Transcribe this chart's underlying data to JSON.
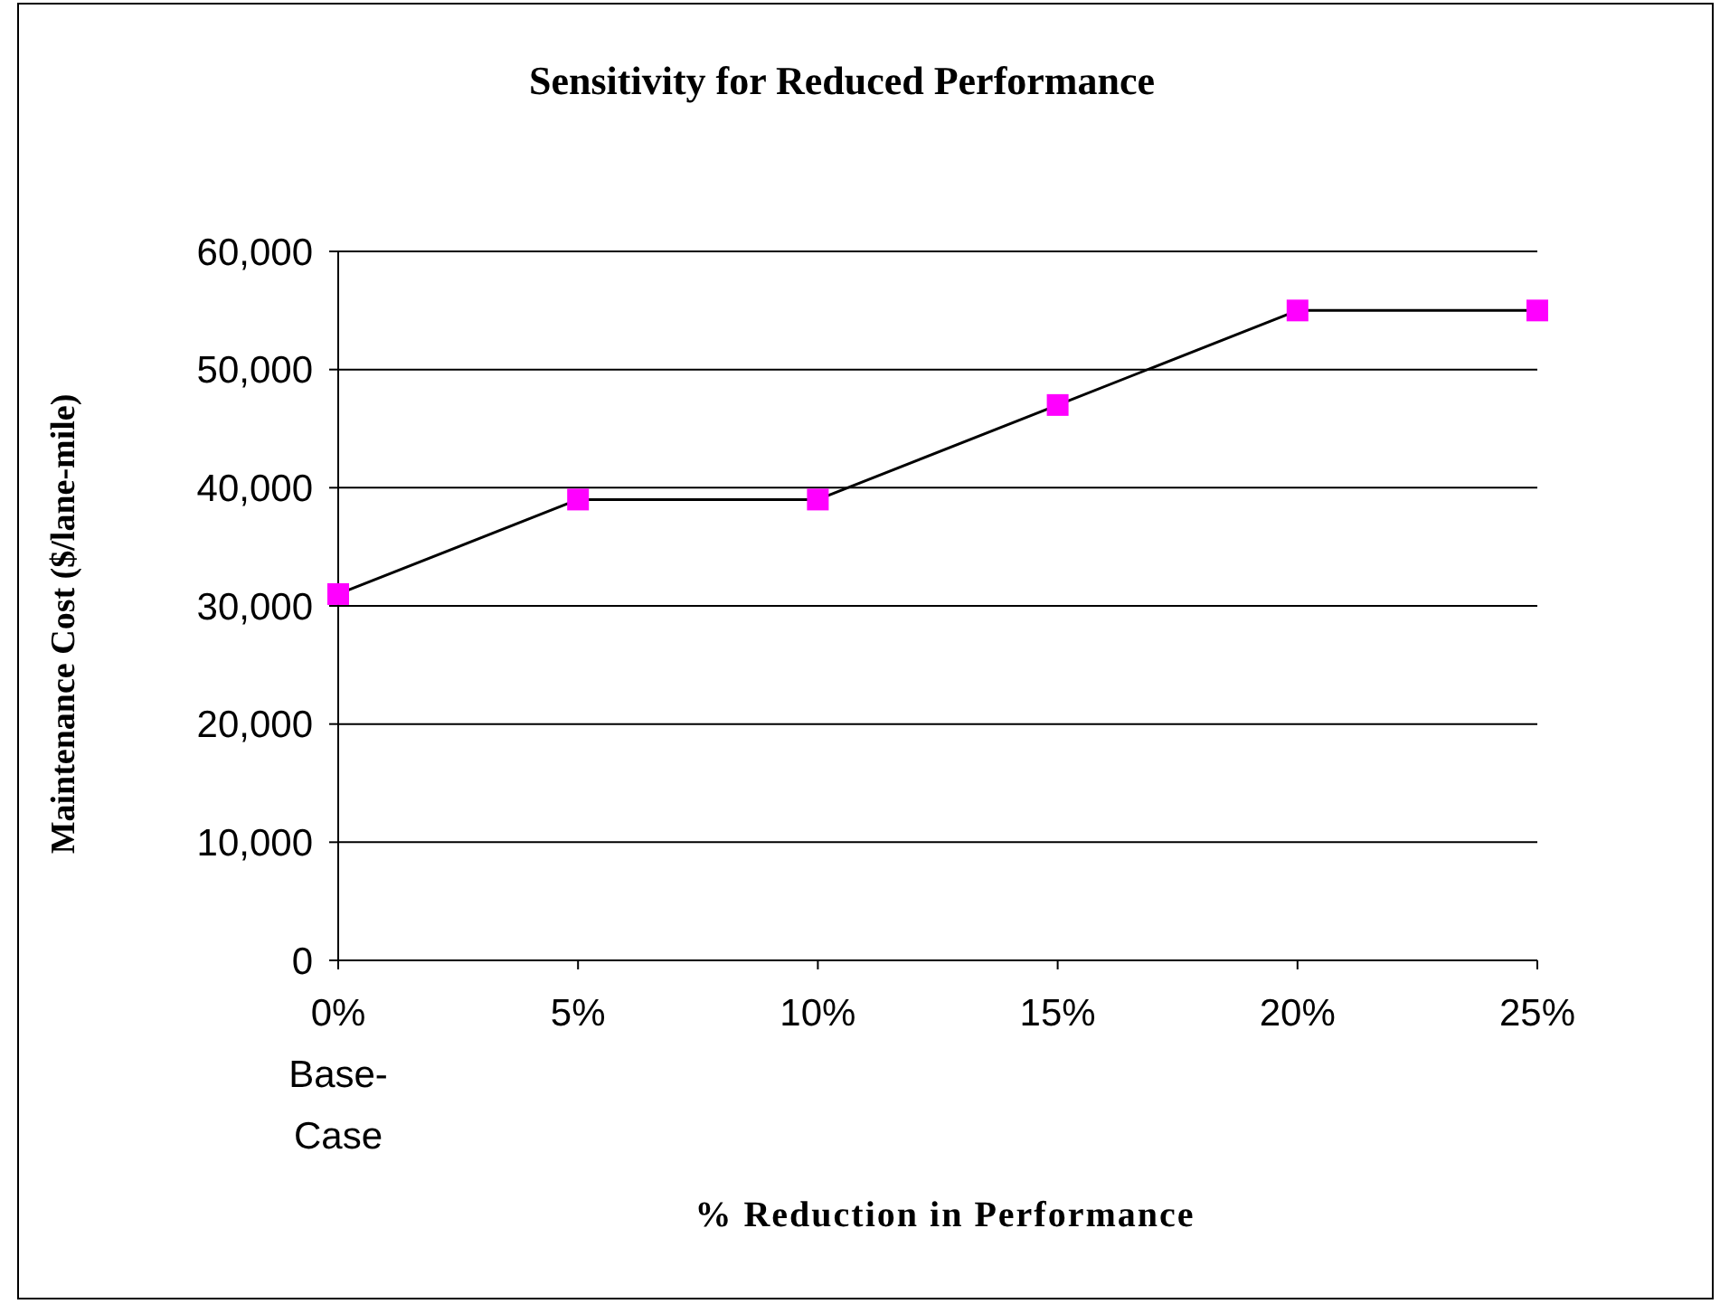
{
  "chart_data": {
    "type": "line",
    "title": "Sensitivity for Reduced Performance",
    "xlabel": "% Reduction in Performance",
    "ylabel": "Maintenance Cost ($/lane-mile)",
    "categories": [
      "0%\nBase-\nCase",
      "5%",
      "10%",
      "15%",
      "20%",
      "25%"
    ],
    "series": [
      {
        "color": "#ff00ff",
        "values": [
          31000,
          39000,
          39000,
          47000,
          55000,
          55000
        ]
      }
    ],
    "ylim": [
      0,
      60000
    ],
    "yticks": [
      {
        "value": 0,
        "label": "0"
      },
      {
        "value": 10000,
        "label": "10,000"
      },
      {
        "value": 20000,
        "label": "20,000"
      },
      {
        "value": 30000,
        "label": "30,000"
      },
      {
        "value": 40000,
        "label": "40,000"
      },
      {
        "value": 50000,
        "label": "50,000"
      },
      {
        "value": 60000,
        "label": "60,000"
      }
    ],
    "grid": "y",
    "marker": "square",
    "line_style": "solid"
  }
}
